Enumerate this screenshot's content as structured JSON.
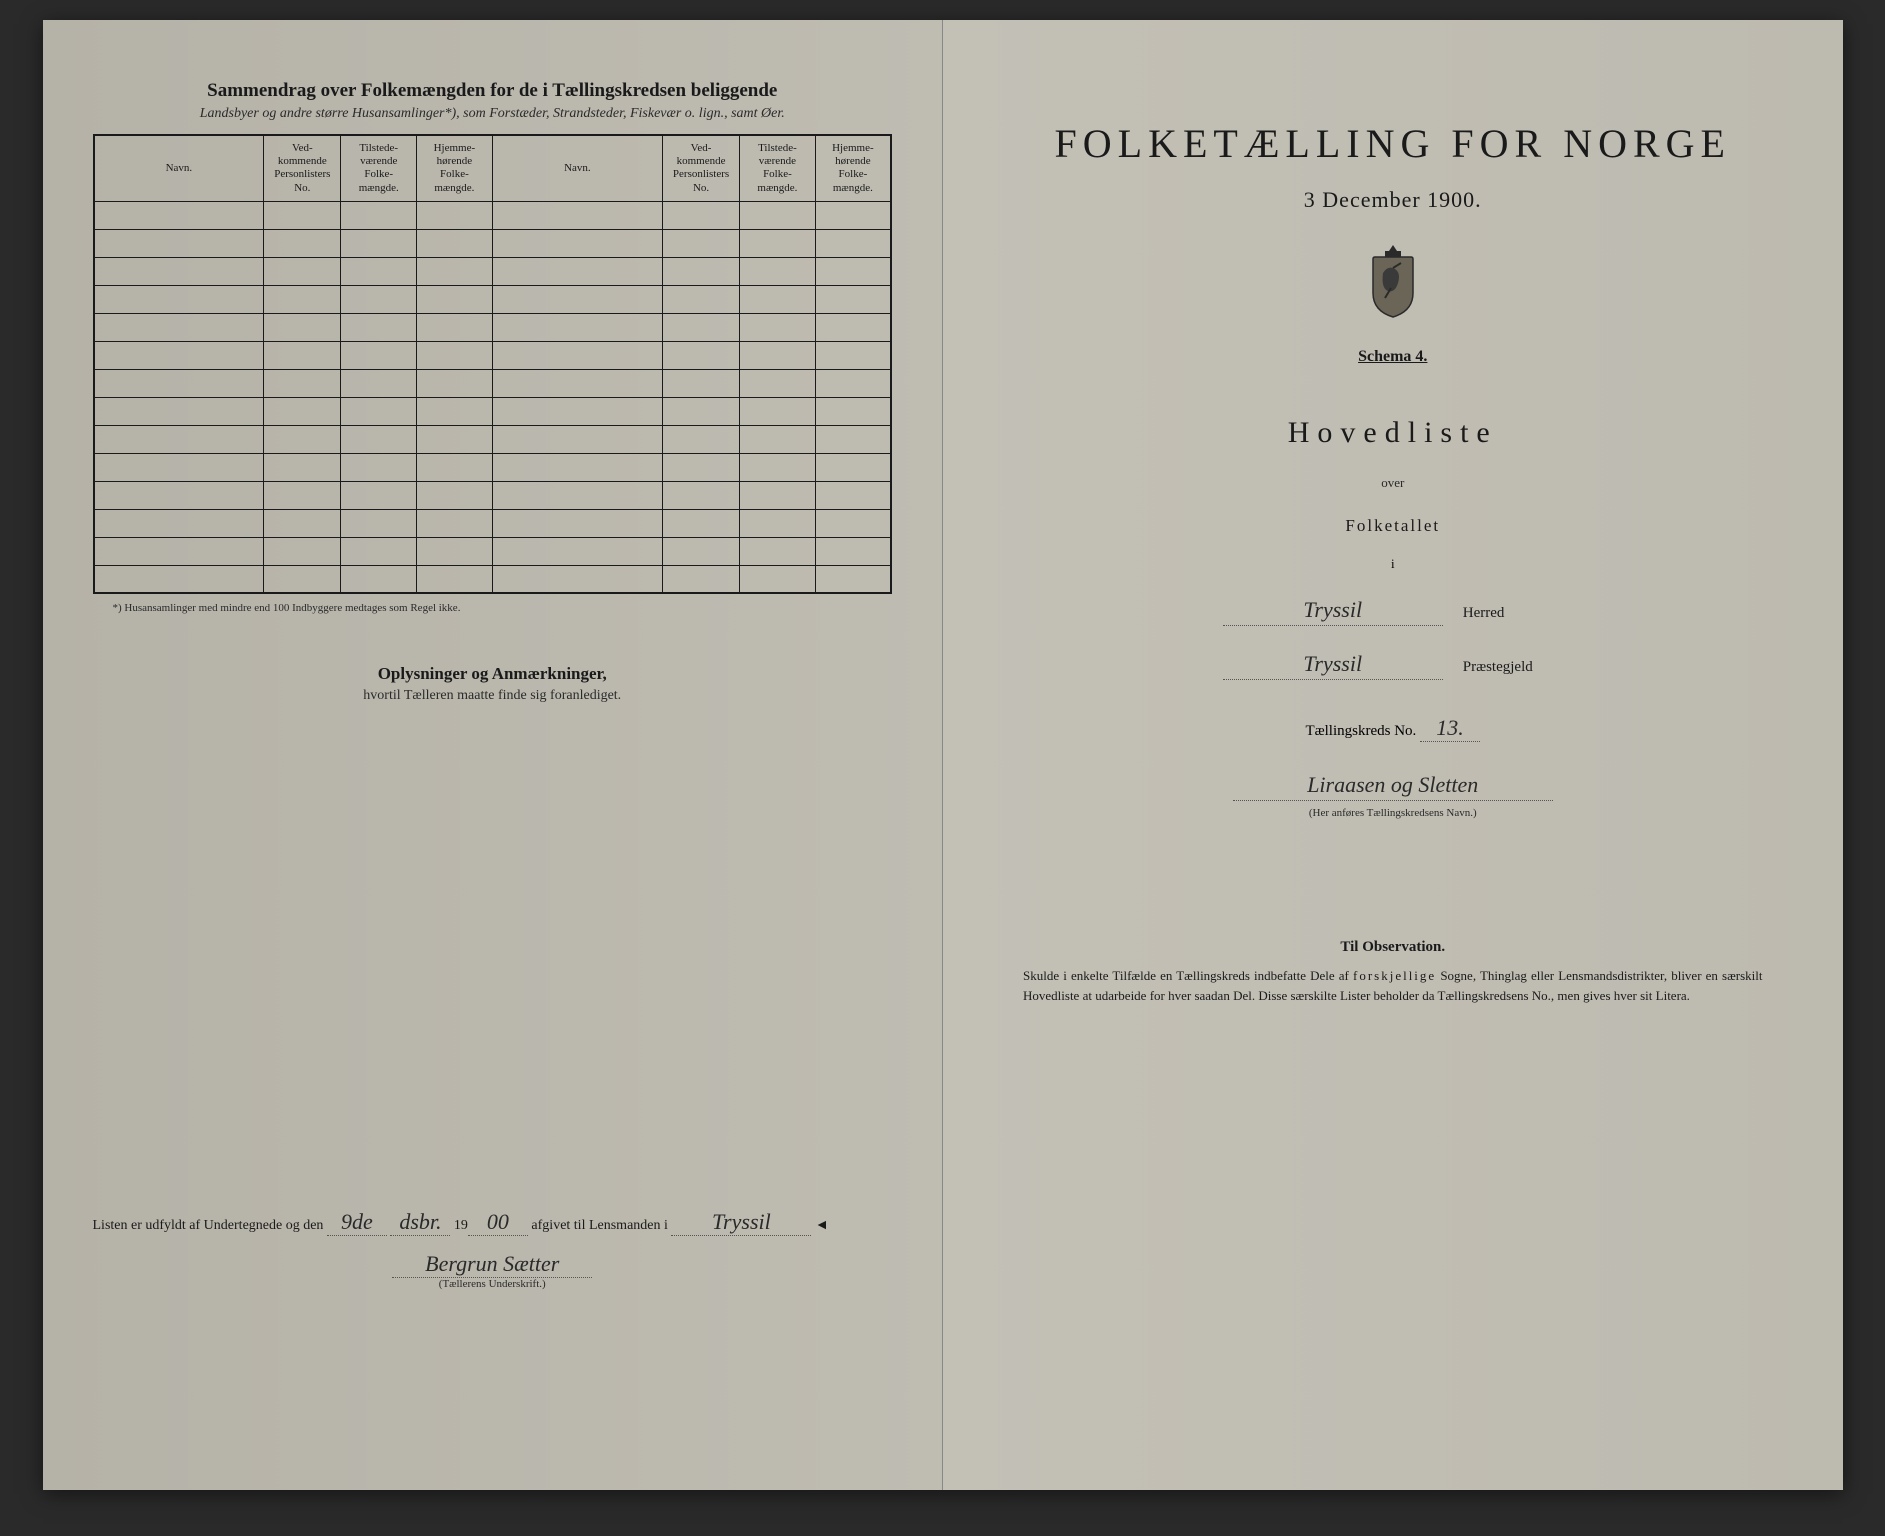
{
  "left": {
    "title": "Sammendrag over Folkemængden for de i Tællingskredsen beliggende",
    "subtitle": "Landsbyer og andre større Husansamlinger*), som Forstæder, Strandsteder, Fiskevær o. lign., samt Øer.",
    "table": {
      "headers": {
        "navn": "Navn.",
        "lister": "Ved-\nkommende\nPersonlisters\nNo.",
        "tilstede": "Tilstede-\nværende\nFolke-\nmængde.",
        "hjemme": "Hjemme-\nhørende\nFolke-\nmængde."
      },
      "row_count": 14
    },
    "footnote": "*) Husansamlinger med mindre end 100 Indbyggere medtages som Regel ikke.",
    "oplysninger_title": "Oplysninger og Anmærkninger,",
    "oplysninger_sub": "hvortil Tælleren maatte finde sig foranlediget.",
    "sig_prefix": "Listen er udfyldt af Undertegnede og den",
    "sig_day": "9de",
    "sig_month": "dsbr.",
    "sig_year_prefix": "19",
    "sig_year": "00",
    "sig_mid": "afgivet til Lensmanden i",
    "sig_place": "Tryssil",
    "sig_name": "Bergrun Sætter",
    "sig_label": "(Tællerens Underskrift.)"
  },
  "right": {
    "main_title": "FOLKETÆLLING FOR NORGE",
    "date": "3 December 1900.",
    "schema": "Schema 4.",
    "hovedliste": "Hovedliste",
    "over": "over",
    "folketallet": "Folketallet",
    "i": "i",
    "herred_value": "Tryssil",
    "herred_label": "Herred",
    "praestegjeld_value": "Tryssil",
    "praestegjeld_label": "Præstegjeld",
    "kreds_prefix": "Tællingskreds No.",
    "kreds_no": "13.",
    "kreds_name": "Liraasen og Sletten",
    "kreds_hint": "(Her anføres Tællingskredsens Navn.)",
    "obs_title": "Til Observation.",
    "obs_text": "Skulde i enkelte Tilfælde en Tællingskreds indbefatte Dele af forskjellige Sogne, Thinglag eller Lensmandsdistrikter, bliver en særskilt Hovedliste at udarbeide for hver saadan Del. Disse særskilte Lister beholder da Tællingskredsens No., men gives hver sit Litera."
  },
  "colors": {
    "paper": "#bfbcb2",
    "ink": "#1a1a1a",
    "background": "#2a2a2a"
  }
}
